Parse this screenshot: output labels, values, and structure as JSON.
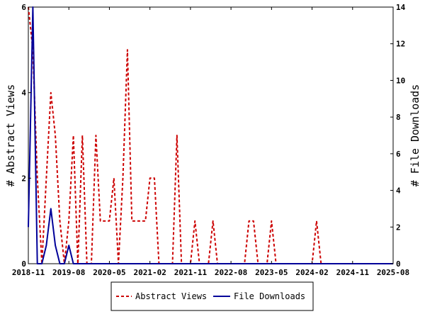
{
  "chart_data": {
    "type": "line",
    "ylabel_left": "# Abstract Views",
    "ylabel_right": "# File Downloads",
    "x_ticks": [
      "2018-11",
      "2019-08",
      "2020-05",
      "2021-02",
      "2021-11",
      "2022-08",
      "2023-05",
      "2024-02",
      "2024-11",
      "2025-08"
    ],
    "x_range": [
      "2018-11",
      "2025-08"
    ],
    "ylim_left": [
      0,
      6
    ],
    "ylim_right": [
      0,
      14
    ],
    "y_ticks_left": [
      "0",
      "2",
      "4",
      "6"
    ],
    "y_ticks_right": [
      "0",
      "2",
      "4",
      "6",
      "8",
      "10",
      "12",
      "14"
    ],
    "grid": false,
    "legend_position": "bottom",
    "series": [
      {
        "name": "Abstract Views",
        "color": "#cc0000",
        "style": "dashed",
        "axis": "left",
        "points": [
          [
            "2018-11",
            6
          ],
          [
            "2018-12",
            5
          ],
          [
            "2019-01",
            2
          ],
          [
            "2019-02",
            0
          ],
          [
            "2019-03",
            2
          ],
          [
            "2019-04",
            4
          ],
          [
            "2019-05",
            3
          ],
          [
            "2019-06",
            1
          ],
          [
            "2019-07",
            0
          ],
          [
            "2019-08",
            1
          ],
          [
            "2019-09",
            3
          ],
          [
            "2019-10",
            0
          ],
          [
            "2019-11",
            3
          ],
          [
            "2019-12",
            0
          ],
          [
            "2020-01",
            0
          ],
          [
            "2020-02",
            3
          ],
          [
            "2020-03",
            1
          ],
          [
            "2020-04",
            1
          ],
          [
            "2020-05",
            1
          ],
          [
            "2020-06",
            2
          ],
          [
            "2020-07",
            0
          ],
          [
            "2020-08",
            2
          ],
          [
            "2020-09",
            5
          ],
          [
            "2020-10",
            1
          ],
          [
            "2020-11",
            1
          ],
          [
            "2020-12",
            1
          ],
          [
            "2021-01",
            1
          ],
          [
            "2021-02",
            2
          ],
          [
            "2021-03",
            2
          ],
          [
            "2021-04",
            0
          ],
          [
            "2021-05",
            0
          ],
          [
            "2021-06",
            0
          ],
          [
            "2021-07",
            0
          ],
          [
            "2021-08",
            3
          ],
          [
            "2021-09",
            0
          ],
          [
            "2021-10",
            0
          ],
          [
            "2021-11",
            0
          ],
          [
            "2021-12",
            1
          ],
          [
            "2022-01",
            0
          ],
          [
            "2022-02",
            0
          ],
          [
            "2022-03",
            0
          ],
          [
            "2022-04",
            1
          ],
          [
            "2022-05",
            0
          ],
          [
            "2022-06",
            0
          ],
          [
            "2022-07",
            0
          ],
          [
            "2022-08",
            0
          ],
          [
            "2022-09",
            0
          ],
          [
            "2022-10",
            0
          ],
          [
            "2022-11",
            0
          ],
          [
            "2022-12",
            1
          ],
          [
            "2023-01",
            1
          ],
          [
            "2023-02",
            0
          ],
          [
            "2023-03",
            0
          ],
          [
            "2023-04",
            0
          ],
          [
            "2023-05",
            1
          ],
          [
            "2023-06",
            0
          ],
          [
            "2023-07",
            0
          ],
          [
            "2023-08",
            0
          ],
          [
            "2023-09",
            0
          ],
          [
            "2023-10",
            0
          ],
          [
            "2023-11",
            0
          ],
          [
            "2023-12",
            0
          ],
          [
            "2024-01",
            0
          ],
          [
            "2024-02",
            0
          ],
          [
            "2024-03",
            1
          ],
          [
            "2024-04",
            0
          ],
          [
            "2024-05",
            0
          ],
          [
            "2024-06",
            0
          ],
          [
            "2024-07",
            0
          ],
          [
            "2024-08",
            0
          ],
          [
            "2024-09",
            0
          ],
          [
            "2024-10",
            0
          ],
          [
            "2024-11",
            0
          ],
          [
            "2024-12",
            0
          ],
          [
            "2025-01",
            0
          ],
          [
            "2025-02",
            0
          ],
          [
            "2025-03",
            0
          ],
          [
            "2025-04",
            0
          ],
          [
            "2025-05",
            0
          ],
          [
            "2025-06",
            0
          ],
          [
            "2025-07",
            0
          ],
          [
            "2025-08",
            0
          ]
        ]
      },
      {
        "name": "File Downloads",
        "color": "#000099",
        "style": "solid",
        "axis": "right",
        "points": [
          [
            "2018-11",
            2
          ],
          [
            "2018-12",
            14
          ],
          [
            "2019-01",
            0
          ],
          [
            "2019-02",
            0
          ],
          [
            "2019-03",
            1
          ],
          [
            "2019-04",
            3
          ],
          [
            "2019-05",
            1
          ],
          [
            "2019-06",
            0
          ],
          [
            "2019-07",
            0
          ],
          [
            "2019-08",
            1
          ],
          [
            "2019-09",
            0
          ],
          [
            "2019-10",
            0
          ],
          [
            "2019-11",
            0
          ],
          [
            "2019-12",
            0
          ],
          [
            "2020-06",
            0
          ],
          [
            "2021-06",
            0
          ],
          [
            "2022-06",
            0
          ],
          [
            "2023-06",
            0
          ],
          [
            "2024-06",
            0
          ],
          [
            "2025-08",
            0
          ]
        ]
      }
    ]
  }
}
